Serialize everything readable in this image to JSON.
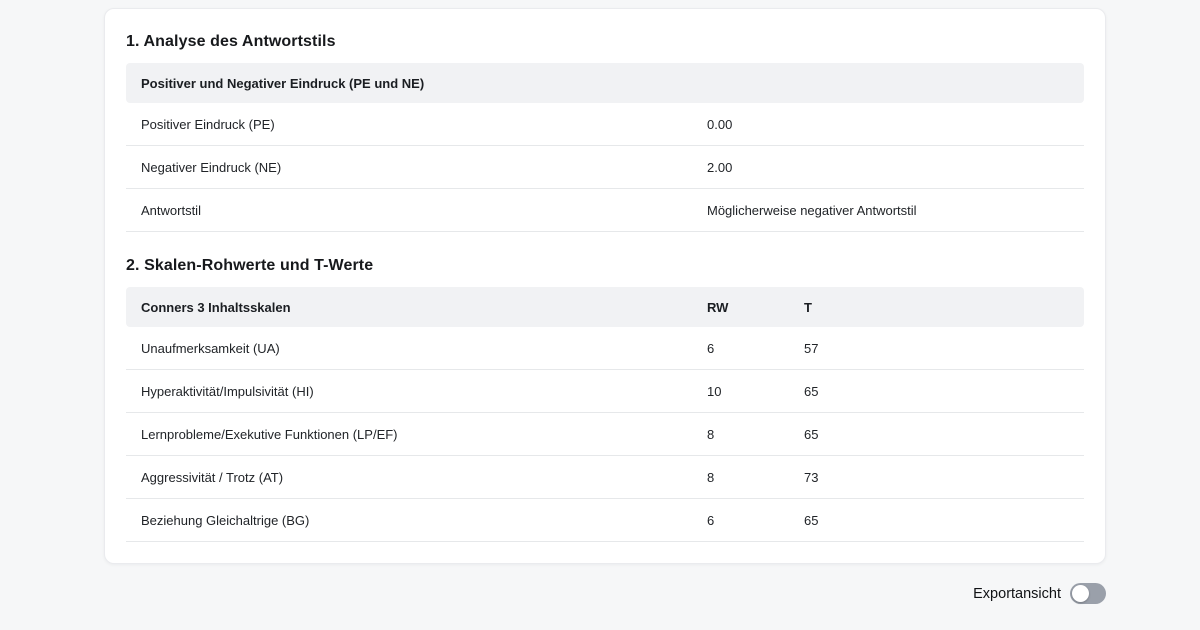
{
  "section1": {
    "title": "1. Analyse des Antwortstils",
    "table": {
      "header": "Positiver und Negativer Eindruck (PE und NE)",
      "rows": [
        {
          "label": "Positiver Eindruck (PE)",
          "value": "0.00"
        },
        {
          "label": "Negativer Eindruck (NE)",
          "value": "2.00"
        },
        {
          "label": "Antwortstil",
          "value": "Möglicherweise negativer Antwortstil"
        }
      ]
    }
  },
  "section2": {
    "title": "2. Skalen-Rohwerte und T-Werte",
    "table": {
      "header": {
        "name": "Conners 3 Inhaltsskalen",
        "rw": "RW",
        "t": "T"
      },
      "rows": [
        {
          "label": "Unaufmerksamkeit (UA)",
          "rw": "6",
          "t": "57"
        },
        {
          "label": "Hyperaktivität/Impulsivität (HI)",
          "rw": "10",
          "t": "65"
        },
        {
          "label": "Lernprobleme/Exekutive Funktionen (LP/EF)",
          "rw": "8",
          "t": "65"
        },
        {
          "label": "Aggressivität / Trotz (AT)",
          "rw": "8",
          "t": "73"
        },
        {
          "label": "Beziehung Gleichaltrige (BG)",
          "rw": "6",
          "t": "65"
        }
      ]
    }
  },
  "footer": {
    "toggle_label": "Exportansicht",
    "toggle_state": "off"
  },
  "colors": {
    "page_background": "#f6f7f8",
    "card_background": "#ffffff",
    "table_header_background": "#f1f2f4",
    "row_divider": "#e6e8ea",
    "toggle_track_off": "#9aa0aa",
    "toggle_knob": "#ffffff",
    "text_primary": "#212428"
  }
}
